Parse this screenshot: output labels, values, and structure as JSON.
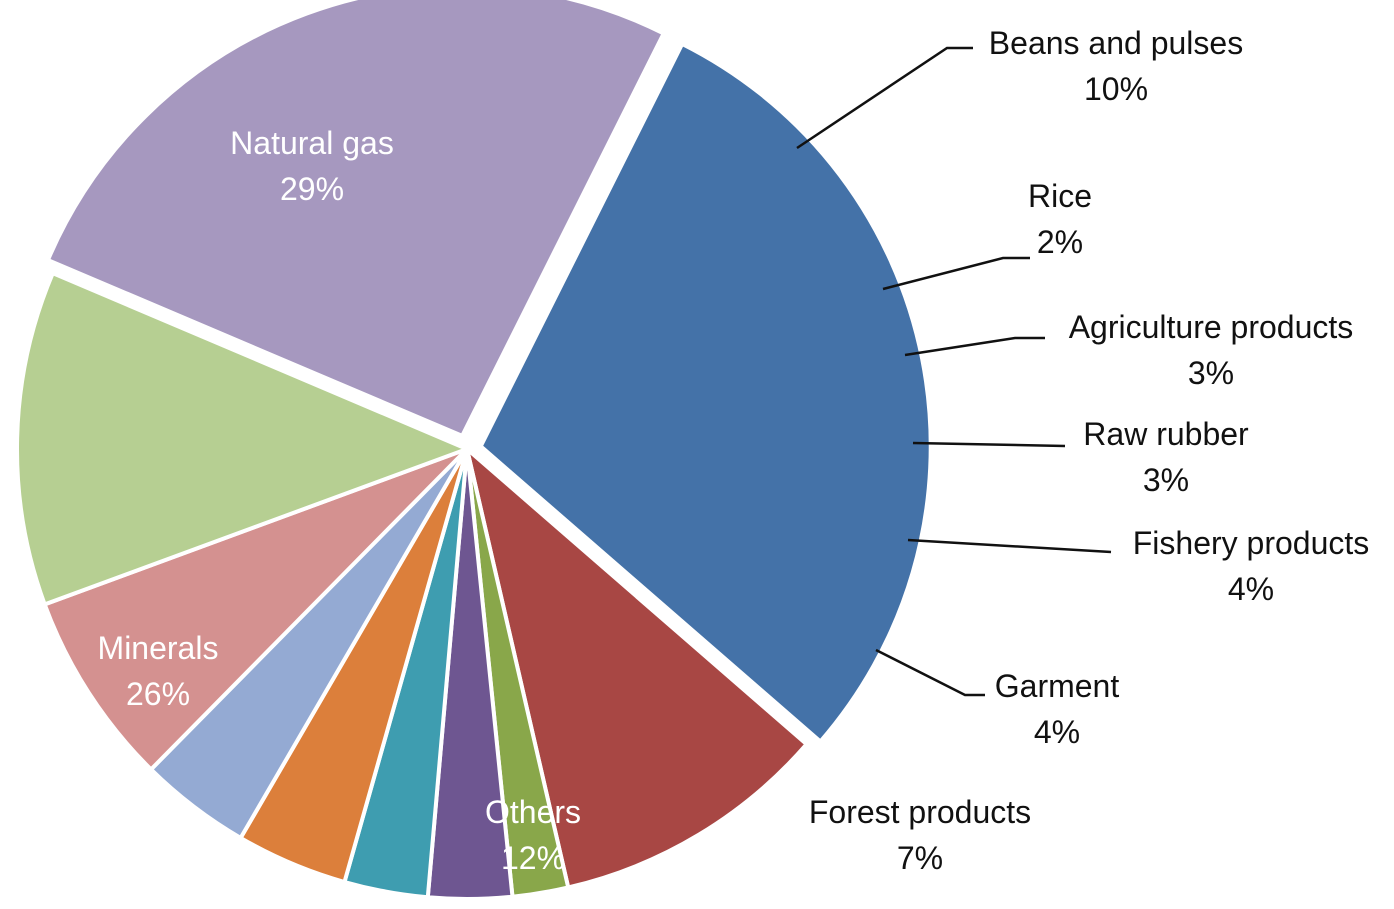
{
  "chart_data": {
    "type": "pie",
    "title": "",
    "slices": [
      {
        "label": "Natural gas",
        "value": 29,
        "value_label": "29%",
        "color": "#4472A8",
        "label_position": "inside"
      },
      {
        "label": "Beans and pulses",
        "value": 10,
        "value_label": "10%",
        "color": "#A84744",
        "label_position": "outside"
      },
      {
        "label": "Rice",
        "value": 2,
        "value_label": "2%",
        "color": "#89A74A",
        "label_position": "outside"
      },
      {
        "label": "Agriculture products",
        "value": 3,
        "value_label": "3%",
        "color": "#6E5691",
        "label_position": "outside"
      },
      {
        "label": "Raw rubber",
        "value": 3,
        "value_label": "3%",
        "color": "#3E9DB0",
        "label_position": "outside"
      },
      {
        "label": "Fishery products",
        "value": 4,
        "value_label": "4%",
        "color": "#DC7F3B",
        "label_position": "outside"
      },
      {
        "label": "Garment",
        "value": 4,
        "value_label": "4%",
        "color": "#94AAD3",
        "label_position": "outside"
      },
      {
        "label": "Forest products",
        "value": 7,
        "value_label": "7%",
        "color": "#D49190",
        "label_position": "outside"
      },
      {
        "label": "Others",
        "value": 12,
        "value_label": "12%",
        "color": "#B6CF92",
        "label_position": "inside"
      },
      {
        "label": "Minerals",
        "value": 26,
        "value_label": "26%",
        "color": "#A698BF",
        "label_position": "inside"
      }
    ],
    "legend": "none",
    "exploded_slices": [
      "Natural gas",
      "Minerals"
    ]
  }
}
